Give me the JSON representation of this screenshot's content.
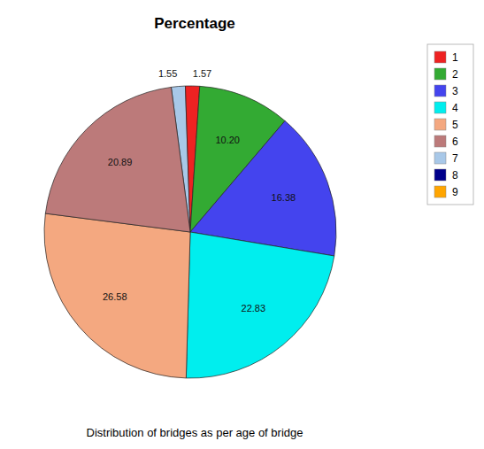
{
  "chart_data": {
    "type": "pie",
    "title": "Percentage",
    "subtitle": "Distribution of bridges as per age of bridge",
    "values": [
      1.55,
      1.57,
      10.2,
      16.38,
      22.83,
      26.58,
      20.89
    ],
    "value_labels": [
      "1.55",
      "1.57",
      "10.20",
      "16.38",
      "22.83",
      "26.58",
      "20.89"
    ],
    "colors": [
      "#A8C8E8",
      "#EE2222",
      "#33AA33",
      "#4444EE",
      "#00EEEE",
      "#F4A880",
      "#BC7A7A"
    ],
    "data_labels": true,
    "legend": "upper right",
    "legend_entries": [
      {
        "name": "1",
        "color": "#EE2222"
      },
      {
        "name": "2",
        "color": "#33AA33"
      },
      {
        "name": "3",
        "color": "#4444EE"
      },
      {
        "name": "4",
        "color": "#00EEEE"
      },
      {
        "name": "5",
        "color": "#F4A880"
      },
      {
        "name": "6",
        "color": "#BC7A7A"
      },
      {
        "name": "7",
        "color": "#A8C8E8"
      },
      {
        "name": "8",
        "color": "#00008B"
      },
      {
        "name": "9",
        "color": "#FFA500"
      }
    ]
  }
}
